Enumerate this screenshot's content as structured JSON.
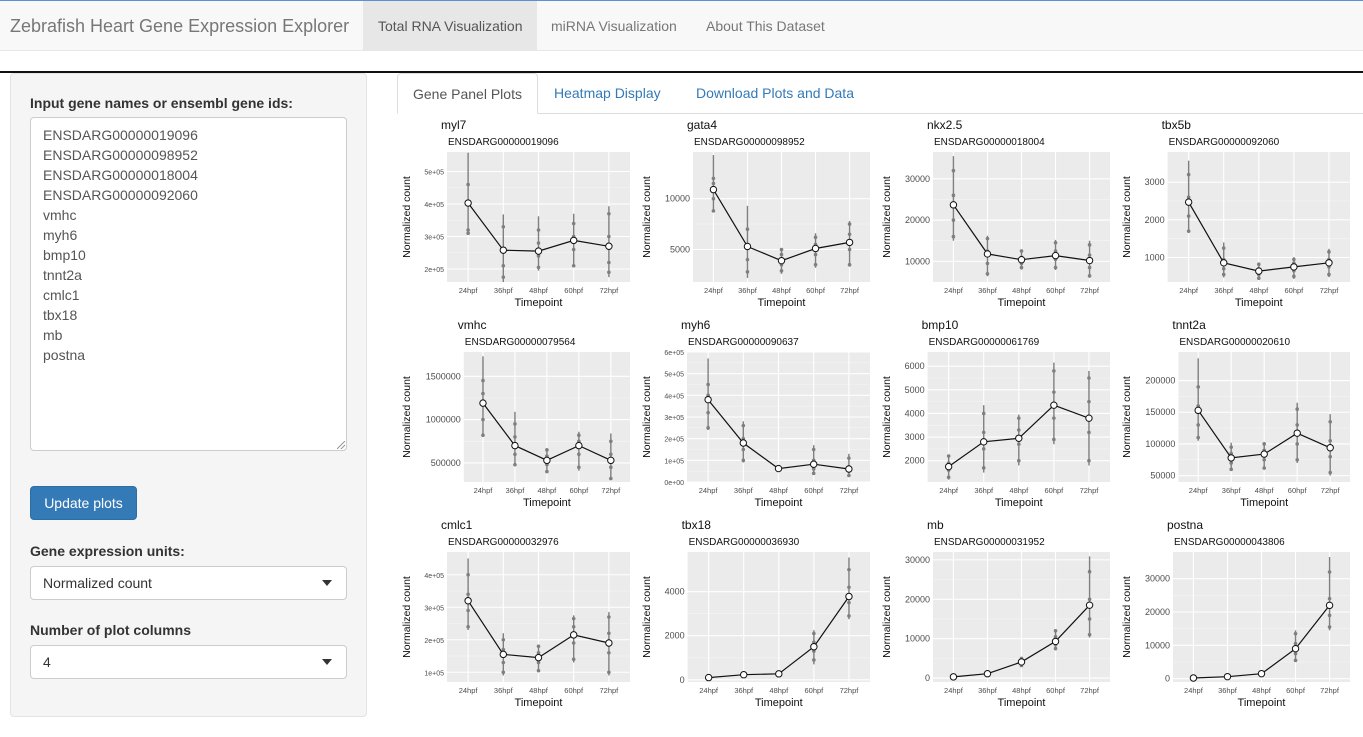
{
  "navbar": {
    "brand": "Zebrafish Heart Gene Expression Explorer",
    "tabs": [
      {
        "label": "Total RNA Visualization"
      },
      {
        "label": "miRNA Visualization"
      },
      {
        "label": "About This Dataset"
      }
    ]
  },
  "sidebar": {
    "gene_input_label": "Input gene names or ensembl gene ids:",
    "genes": [
      "ENSDARG00000019096",
      "ENSDARG00000098952",
      "ENSDARG00000018004",
      "ENSDARG00000092060",
      "vmhc",
      "myh6",
      "bmp10",
      "tnnt2a",
      "cmlc1",
      "tbx18",
      "mb",
      "postna"
    ],
    "update_button": "Update plots",
    "units_label": "Gene expression units:",
    "units_value": "Normalized count",
    "columns_label": "Number of plot columns",
    "columns_value": "4"
  },
  "content_tabs": [
    {
      "label": "Gene Panel Plots"
    },
    {
      "label": "Heatmap Display"
    },
    {
      "label": "Download Plots and Data"
    }
  ],
  "plot_common": {
    "xlabel": "Timepoint",
    "ylabel": "Normalized count",
    "x": [
      "24hpf",
      "36hpf",
      "48hpf",
      "60hpf",
      "72hpf"
    ]
  },
  "chart_data": [
    {
      "type": "line",
      "gene": "myl7",
      "id": "ENSDARG00000019096",
      "yticks": [
        {
          "v": 200000,
          "t": "2e+05"
        },
        {
          "v": 300000,
          "t": "3e+05"
        },
        {
          "v": 400000,
          "t": "4e+05"
        },
        {
          "v": 500000,
          "t": "5e+05"
        }
      ],
      "ylim": [
        160000,
        560000
      ],
      "mean": [
        403000,
        258000,
        255000,
        288000,
        270000
      ],
      "err": [
        [
          305000,
          558000
        ],
        [
          160000,
          368000
        ],
        [
          195000,
          362000
        ],
        [
          205000,
          370000
        ],
        [
          175000,
          393000
        ]
      ],
      "pts": [
        [
          310000,
          320000,
          400000,
          460000
        ],
        [
          175000,
          210000,
          260000,
          330000
        ],
        [
          205000,
          240000,
          280000,
          320000
        ],
        [
          210000,
          260000,
          300000,
          340000
        ],
        [
          190000,
          220000,
          300000,
          370000
        ]
      ]
    },
    {
      "type": "line",
      "gene": "gata4",
      "id": "ENSDARG00000098952",
      "yticks": [
        {
          "v": 5000,
          "t": "5000"
        },
        {
          "v": 10000,
          "t": "10000"
        }
      ],
      "ylim": [
        1800,
        14600
      ],
      "mean": [
        10900,
        5300,
        3900,
        5100,
        5700
      ],
      "err": [
        [
          8700,
          14300
        ],
        [
          2200,
          9300
        ],
        [
          2600,
          5100
        ],
        [
          3200,
          6600
        ],
        [
          3300,
          7800
        ]
      ],
      "pts": [
        [
          8800,
          10000,
          11500,
          12000
        ],
        [
          2800,
          4000,
          5500,
          7000
        ],
        [
          2900,
          3500,
          4500,
          5000
        ],
        [
          3500,
          4500,
          5500,
          6200
        ],
        [
          3500,
          5000,
          6500,
          7500
        ]
      ]
    },
    {
      "type": "line",
      "gene": "nkx2.5",
      "id": "ENSDARG00000018004",
      "yticks": [
        {
          "v": 10000,
          "t": "10000"
        },
        {
          "v": 20000,
          "t": "20000"
        },
        {
          "v": 30000,
          "t": "30000"
        }
      ],
      "ylim": [
        5000,
        36500
      ],
      "mean": [
        23700,
        11800,
        10400,
        11400,
        10200
      ],
      "err": [
        [
          15000,
          35500
        ],
        [
          6400,
          16200
        ],
        [
          8000,
          12900
        ],
        [
          7900,
          15200
        ],
        [
          6000,
          15000
        ]
      ],
      "pts": [
        [
          16000,
          20000,
          26000,
          32000
        ],
        [
          7000,
          9500,
          12500,
          15500
        ],
        [
          8500,
          9500,
          11000,
          12500
        ],
        [
          8500,
          10500,
          12500,
          14500
        ],
        [
          6500,
          8500,
          11500,
          14000
        ]
      ]
    },
    {
      "type": "line",
      "gene": "tbx5b",
      "id": "ENSDARG00000092060",
      "yticks": [
        {
          "v": 1000,
          "t": "1000"
        },
        {
          "v": 2000,
          "t": "2000"
        },
        {
          "v": 3000,
          "t": "3000"
        }
      ],
      "ylim": [
        350,
        3800
      ],
      "mean": [
        2470,
        860,
        640,
        750,
        860
      ],
      "err": [
        [
          1650,
          3570
        ],
        [
          470,
          1400
        ],
        [
          420,
          870
        ],
        [
          430,
          1010
        ],
        [
          480,
          1230
        ]
      ],
      "pts": [
        [
          1700,
          2100,
          2600,
          3200
        ],
        [
          550,
          700,
          950,
          1250
        ],
        [
          450,
          550,
          700,
          820
        ],
        [
          500,
          650,
          850,
          950
        ],
        [
          550,
          750,
          950,
          1150
        ]
      ]
    },
    {
      "type": "line",
      "gene": "vmhc",
      "id": "ENSDARG00000079564",
      "yticks": [
        {
          "v": 500000,
          "t": "500000"
        },
        {
          "v": 1000000,
          "t": "1000000"
        },
        {
          "v": 1500000,
          "t": "1500000"
        }
      ],
      "ylim": [
        280000,
        1780000
      ],
      "mean": [
        1190000,
        700000,
        530000,
        700000,
        530000
      ],
      "err": [
        [
          800000,
          1730000
        ],
        [
          460000,
          1090000
        ],
        [
          390000,
          670000
        ],
        [
          410000,
          860000
        ],
        [
          300000,
          840000
        ]
      ],
      "pts": [
        [
          820000,
          1000000,
          1300000,
          1450000
        ],
        [
          480000,
          600000,
          800000,
          950000
        ],
        [
          400000,
          480000,
          580000,
          650000
        ],
        [
          450000,
          600000,
          750000,
          820000
        ],
        [
          320000,
          450000,
          600000,
          750000
        ]
      ]
    },
    {
      "type": "line",
      "gene": "myh6",
      "id": "ENSDARG00000090637",
      "yticks": [
        {
          "v": 0,
          "t": "0e+00"
        },
        {
          "v": 100000,
          "t": "1e+05"
        },
        {
          "v": 200000,
          "t": "2e+05"
        },
        {
          "v": 300000,
          "t": "3e+05"
        },
        {
          "v": 400000,
          "t": "4e+05"
        },
        {
          "v": 500000,
          "t": "5e+05"
        },
        {
          "v": 600000,
          "t": "6e+05"
        }
      ],
      "ylim": [
        0,
        600000
      ],
      "mean": [
        380000,
        180000,
        62000,
        82000,
        60000
      ],
      "err": [
        [
          240000,
          570000
        ],
        [
          90000,
          280000
        ],
        [
          57000,
          65000
        ],
        [
          35000,
          170000
        ],
        [
          25000,
          130000
        ]
      ],
      "pts": [
        [
          250000,
          320000,
          400000,
          450000
        ],
        [
          100000,
          150000,
          200000,
          260000
        ],
        [
          58000,
          60000,
          63000,
          65000
        ],
        [
          40000,
          60000,
          100000,
          150000
        ],
        [
          30000,
          50000,
          70000,
          110000
        ]
      ]
    },
    {
      "type": "line",
      "gene": "bmp10",
      "id": "ENSDARG00000061769",
      "yticks": [
        {
          "v": 2000,
          "t": "2000"
        },
        {
          "v": 3000,
          "t": "3000"
        },
        {
          "v": 4000,
          "t": "4000"
        },
        {
          "v": 5000,
          "t": "5000"
        },
        {
          "v": 6000,
          "t": "6000"
        }
      ],
      "ylim": [
        1100,
        6600
      ],
      "mean": [
        1750,
        2800,
        2950,
        4350,
        3800
      ],
      "err": [
        [
          1200,
          2250
        ],
        [
          1500,
          4350
        ],
        [
          1800,
          3950
        ],
        [
          2700,
          6150
        ],
        [
          1800,
          5800
        ]
      ],
      "pts": [
        [
          1300,
          1600,
          1900,
          2200
        ],
        [
          1700,
          2500,
          3200,
          4000
        ],
        [
          2000,
          2700,
          3300,
          3800
        ],
        [
          2900,
          3800,
          4900,
          5800
        ],
        [
          2000,
          3200,
          4500,
          5500
        ]
      ]
    },
    {
      "type": "line",
      "gene": "tnnt2a",
      "id": "ENSDARG00000020610",
      "yticks": [
        {
          "v": 50000,
          "t": "50000"
        },
        {
          "v": 100000,
          "t": "100000"
        },
        {
          "v": 150000,
          "t": "150000"
        },
        {
          "v": 200000,
          "t": "200000"
        }
      ],
      "ylim": [
        40000,
        245000
      ],
      "mean": [
        153000,
        78000,
        84000,
        117000,
        94000
      ],
      "err": [
        [
          105000,
          235000
        ],
        [
          58000,
          102000
        ],
        [
          60000,
          103000
        ],
        [
          70000,
          165000
        ],
        [
          50000,
          147000
        ]
      ],
      "pts": [
        [
          110000,
          130000,
          160000,
          190000
        ],
        [
          60000,
          70000,
          85000,
          95000
        ],
        [
          62000,
          75000,
          90000,
          100000
        ],
        [
          75000,
          100000,
          130000,
          155000
        ],
        [
          55000,
          80000,
          105000,
          135000
        ]
      ]
    },
    {
      "type": "line",
      "gene": "cmlc1",
      "id": "ENSDARG00000032976",
      "yticks": [
        {
          "v": 100000,
          "t": "1e+05"
        },
        {
          "v": 200000,
          "t": "2e+05"
        },
        {
          "v": 300000,
          "t": "3e+05"
        },
        {
          "v": 400000,
          "t": "4e+05"
        }
      ],
      "ylim": [
        70000,
        470000
      ],
      "mean": [
        320000,
        155000,
        145000,
        215000,
        190000
      ],
      "err": [
        [
          230000,
          450000
        ],
        [
          90000,
          220000
        ],
        [
          100000,
          185000
        ],
        [
          130000,
          275000
        ],
        [
          90000,
          285000
        ]
      ],
      "pts": [
        [
          240000,
          290000,
          340000,
          400000
        ],
        [
          100000,
          130000,
          170000,
          200000
        ],
        [
          105000,
          130000,
          160000,
          180000
        ],
        [
          140000,
          190000,
          240000,
          265000
        ],
        [
          100000,
          160000,
          220000,
          270000
        ]
      ]
    },
    {
      "type": "line",
      "gene": "tbx18",
      "id": "ENSDARG00000036930",
      "yticks": [
        {
          "v": 0,
          "t": "0"
        },
        {
          "v": 2000,
          "t": "2000"
        },
        {
          "v": 4000,
          "t": "4000"
        }
      ],
      "ylim": [
        -100,
        5800
      ],
      "mean": [
        100,
        230,
        270,
        1500,
        3780
      ],
      "err": [
        [
          50,
          150
        ],
        [
          150,
          310
        ],
        [
          180,
          360
        ],
        [
          700,
          2250
        ],
        [
          2750,
          5550
        ]
      ],
      "pts": [
        [
          60,
          100,
          130,
          150
        ],
        [
          180,
          220,
          260,
          300
        ],
        [
          200,
          250,
          300,
          340
        ],
        [
          900,
          1300,
          1700,
          2100
        ],
        [
          2900,
          3500,
          4200,
          5000
        ]
      ]
    },
    {
      "type": "line",
      "gene": "mb",
      "id": "ENSDARG00000031952",
      "yticks": [
        {
          "v": 0,
          "t": "0"
        },
        {
          "v": 10000,
          "t": "10000"
        },
        {
          "v": 20000,
          "t": "20000"
        },
        {
          "v": 30000,
          "t": "30000"
        }
      ],
      "ylim": [
        -1000,
        32000
      ],
      "mean": [
        300,
        1100,
        4100,
        9300,
        18500
      ],
      "err": [
        [
          150,
          450
        ],
        [
          800,
          1400
        ],
        [
          3000,
          5200
        ],
        [
          7000,
          12300
        ],
        [
          10300,
          30900
        ]
      ],
      "pts": [
        [
          200,
          300,
          400,
          450
        ],
        [
          850,
          1000,
          1200,
          1350
        ],
        [
          3200,
          3800,
          4500,
          5000
        ],
        [
          7500,
          8500,
          10500,
          12000
        ],
        [
          11000,
          15000,
          20000,
          27000
        ]
      ]
    },
    {
      "type": "line",
      "gene": "postna",
      "id": "ENSDARG00000043806",
      "yticks": [
        {
          "v": 0,
          "t": "0"
        },
        {
          "v": 10000,
          "t": "10000"
        },
        {
          "v": 20000,
          "t": "20000"
        },
        {
          "v": 30000,
          "t": "30000"
        }
      ],
      "ylim": [
        -1000,
        38000
      ],
      "mean": [
        200,
        600,
        1500,
        9000,
        22000
      ],
      "err": [
        [
          100,
          300
        ],
        [
          400,
          800
        ],
        [
          1000,
          2000
        ],
        [
          5000,
          14500
        ],
        [
          14500,
          36500
        ]
      ],
      "pts": [
        [
          120,
          200,
          250,
          300
        ],
        [
          450,
          600,
          700,
          800
        ],
        [
          1100,
          1400,
          1700,
          1900
        ],
        [
          5500,
          7500,
          10500,
          13500
        ],
        [
          15500,
          19000,
          24000,
          32000
        ]
      ]
    }
  ]
}
